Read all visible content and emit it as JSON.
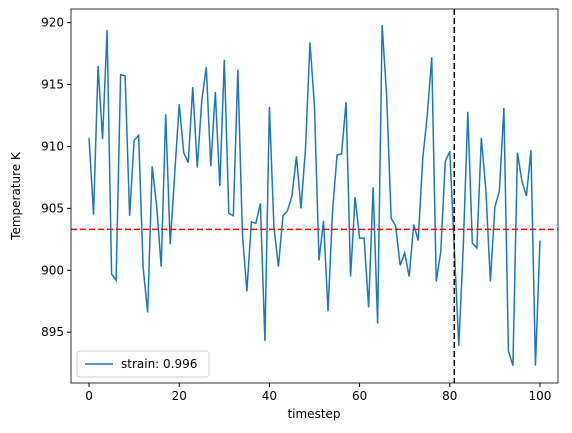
{
  "chart_data": {
    "type": "line",
    "xlabel": "timestep",
    "ylabel": "Temperature K",
    "x": [
      0,
      1,
      2,
      3,
      4,
      5,
      6,
      7,
      8,
      9,
      10,
      11,
      12,
      13,
      14,
      15,
      16,
      17,
      18,
      19,
      20,
      21,
      22,
      23,
      24,
      25,
      26,
      27,
      28,
      29,
      30,
      31,
      32,
      33,
      34,
      35,
      36,
      37,
      38,
      39,
      40,
      41,
      42,
      43,
      44,
      45,
      46,
      47,
      48,
      49,
      50,
      51,
      52,
      53,
      54,
      55,
      56,
      57,
      58,
      59,
      60,
      61,
      62,
      63,
      64,
      65,
      66,
      67,
      68,
      69,
      70,
      71,
      72,
      73,
      74,
      75,
      76,
      77,
      78,
      79,
      80,
      81,
      82,
      83,
      84,
      85,
      86,
      87,
      88,
      89,
      90,
      91,
      92,
      93,
      94,
      95,
      96,
      97,
      98,
      99,
      100
    ],
    "series": [
      {
        "name": "strain: 0.996",
        "color": "#1f77b4",
        "values": [
          910.7,
          904.5,
          916.5,
          910.6,
          919.4,
          899.7,
          899.2,
          915.8,
          915.7,
          904.4,
          910.5,
          910.9,
          900.2,
          896.6,
          908.4,
          905.2,
          900.3,
          912.6,
          902.1,
          907.8,
          913.4,
          909.5,
          908.7,
          914.8,
          908.3,
          913.7,
          916.4,
          908.4,
          914.4,
          906.8,
          917.0,
          904.6,
          904.4,
          916.2,
          903.0,
          898.3,
          903.9,
          903.8,
          905.4,
          894.3,
          913.2,
          903.5,
          900.3,
          904.4,
          904.8,
          906.0,
          909.2,
          905.0,
          909.8,
          918.4,
          913.2,
          900.8,
          904.0,
          896.7,
          904.8,
          909.3,
          909.4,
          913.6,
          899.5,
          905.9,
          902.6,
          902.6,
          897.0,
          906.7,
          895.7,
          919.8,
          914.1,
          904.2,
          903.6,
          900.4,
          901.4,
          899.5,
          903.7,
          902.4,
          909.0,
          912.5,
          917.2,
          899.1,
          901.5,
          908.8,
          909.6,
          901.8,
          893.9,
          902.0,
          912.8,
          902.2,
          901.8,
          910.7,
          906.5,
          899.1,
          905.1,
          906.4,
          913.1,
          893.5,
          892.3,
          909.5,
          907.2,
          906.0,
          909.7,
          892.3,
          902.4
        ]
      }
    ],
    "hline": {
      "value": 903.3,
      "color": "#ff0000"
    },
    "vline": {
      "value": 81,
      "color": "#000000"
    },
    "xlim": [
      -4,
      104
    ],
    "ylim": [
      890.9,
      921.1
    ],
    "xticks": [
      0,
      20,
      40,
      60,
      80,
      100
    ],
    "yticks": [
      895,
      900,
      905,
      910,
      915,
      920
    ],
    "legend": "lower left"
  }
}
